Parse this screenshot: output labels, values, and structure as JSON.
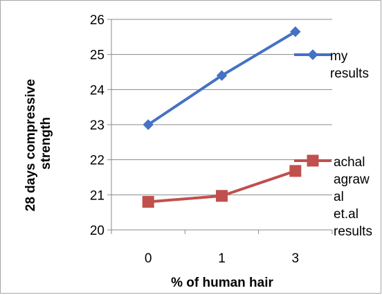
{
  "chart_data": {
    "type": "line",
    "categories": [
      "0",
      "1",
      "3"
    ],
    "series": [
      {
        "name": "my results",
        "values": [
          23.0,
          24.4,
          25.65
        ],
        "color": "#4472c4",
        "marker": "diamond"
      },
      {
        "name": "achal agrawal et.al results",
        "values": [
          20.8,
          20.97,
          21.68
        ],
        "color": "#c0504d",
        "marker": "square"
      }
    ],
    "xlabel": "% of human hair",
    "ylabel": "28 days compressive strength",
    "ylim": [
      20,
      26
    ],
    "yticks": [
      20,
      21,
      22,
      23,
      24,
      25,
      26
    ],
    "grid": true,
    "legend_position": "right"
  }
}
